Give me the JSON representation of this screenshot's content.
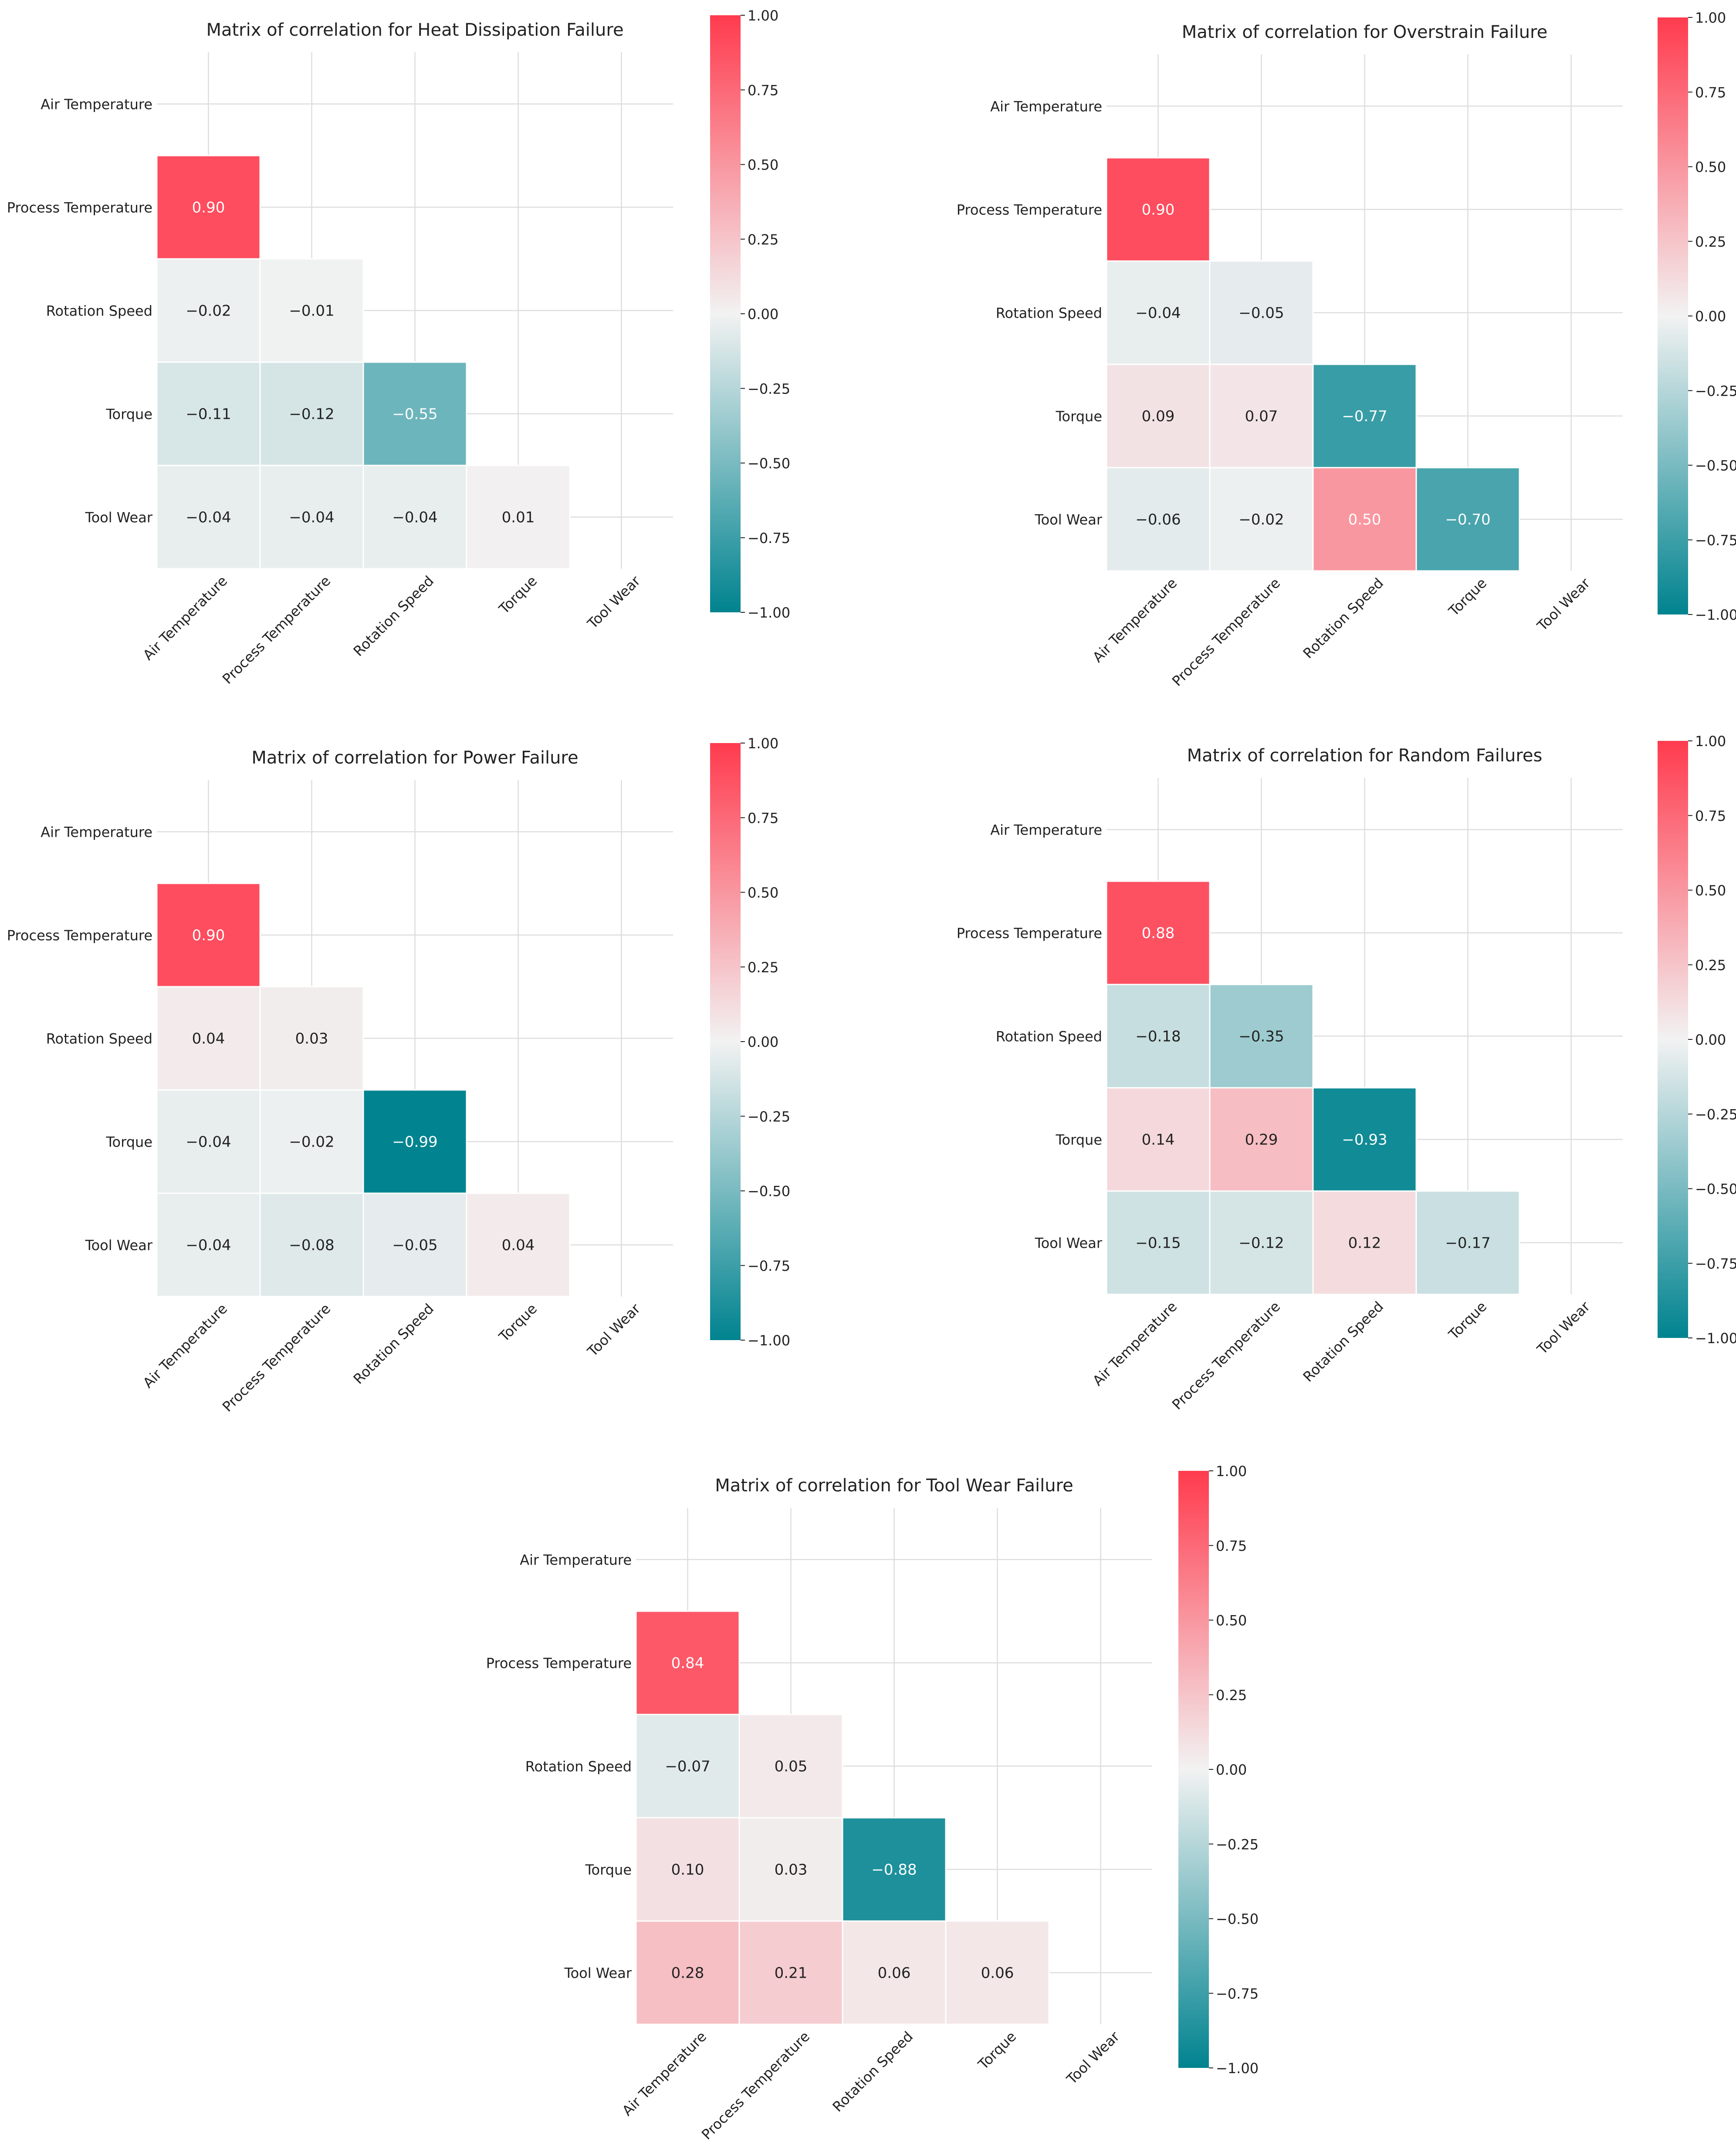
{
  "chart_data": [
    {
      "type": "heatmap",
      "title": "Matrix of correlation for Heat Dissipation Failure",
      "labels": [
        "Air Temperature",
        "Process Temperature",
        "Rotation Speed",
        "Torque",
        "Tool Wear"
      ],
      "values": [
        [
          null,
          null,
          null,
          null,
          null
        ],
        [
          0.9,
          null,
          null,
          null,
          null
        ],
        [
          -0.02,
          -0.01,
          null,
          null,
          null
        ],
        [
          -0.11,
          -0.12,
          -0.55,
          null,
          null
        ],
        [
          -0.04,
          -0.04,
          -0.04,
          0.01,
          null
        ]
      ],
      "colorbar": {
        "min": -1.0,
        "max": 1.0,
        "ticks": [
          "1.00",
          "0.75",
          "0.50",
          "0.25",
          "0.00",
          "−0.25",
          "−0.50",
          "−0.75",
          "−1.00"
        ]
      }
    },
    {
      "type": "heatmap",
      "title": "Matrix of correlation for Overstrain Failure",
      "labels": [
        "Air Temperature",
        "Process Temperature",
        "Rotation Speed",
        "Torque",
        "Tool Wear"
      ],
      "values": [
        [
          null,
          null,
          null,
          null,
          null
        ],
        [
          0.9,
          null,
          null,
          null,
          null
        ],
        [
          -0.04,
          -0.05,
          null,
          null,
          null
        ],
        [
          0.09,
          0.07,
          -0.77,
          null,
          null
        ],
        [
          -0.06,
          -0.02,
          0.5,
          -0.7,
          null
        ]
      ],
      "colorbar": {
        "min": -1.0,
        "max": 1.0,
        "ticks": [
          "1.00",
          "0.75",
          "0.50",
          "0.25",
          "0.00",
          "−0.25",
          "−0.50",
          "−0.75",
          "−1.00"
        ]
      }
    },
    {
      "type": "heatmap",
      "title": "Matrix of correlation for Power Failure",
      "labels": [
        "Air Temperature",
        "Process Temperature",
        "Rotation Speed",
        "Torque",
        "Tool Wear"
      ],
      "values": [
        [
          null,
          null,
          null,
          null,
          null
        ],
        [
          0.9,
          null,
          null,
          null,
          null
        ],
        [
          0.04,
          0.03,
          null,
          null,
          null
        ],
        [
          -0.04,
          -0.02,
          -0.99,
          null,
          null
        ],
        [
          -0.04,
          -0.08,
          -0.05,
          0.04,
          null
        ]
      ],
      "colorbar": {
        "min": -1.0,
        "max": 1.0,
        "ticks": [
          "1.00",
          "0.75",
          "0.50",
          "0.25",
          "0.00",
          "−0.25",
          "−0.50",
          "−0.75",
          "−1.00"
        ]
      }
    },
    {
      "type": "heatmap",
      "title": "Matrix of correlation for Random Failures",
      "labels": [
        "Air Temperature",
        "Process Temperature",
        "Rotation Speed",
        "Torque",
        "Tool Wear"
      ],
      "values": [
        [
          null,
          null,
          null,
          null,
          null
        ],
        [
          0.88,
          null,
          null,
          null,
          null
        ],
        [
          -0.18,
          -0.35,
          null,
          null,
          null
        ],
        [
          0.14,
          0.29,
          -0.93,
          null,
          null
        ],
        [
          -0.15,
          -0.12,
          0.12,
          -0.17,
          null
        ]
      ],
      "colorbar": {
        "min": -1.0,
        "max": 1.0,
        "ticks": [
          "1.00",
          "0.75",
          "0.50",
          "0.25",
          "0.00",
          "−0.25",
          "−0.50",
          "−0.75",
          "−1.00"
        ]
      }
    },
    {
      "type": "heatmap",
      "title": "Matrix of correlation for Tool Wear Failure",
      "labels": [
        "Air Temperature",
        "Process Temperature",
        "Rotation Speed",
        "Torque",
        "Tool Wear"
      ],
      "values": [
        [
          null,
          null,
          null,
          null,
          null
        ],
        [
          0.84,
          null,
          null,
          null,
          null
        ],
        [
          -0.07,
          0.05,
          null,
          null,
          null
        ],
        [
          0.1,
          0.03,
          -0.88,
          null,
          null
        ],
        [
          0.28,
          0.21,
          0.06,
          0.06,
          null
        ]
      ],
      "colorbar": {
        "min": -1.0,
        "max": 1.0,
        "ticks": [
          "1.00",
          "0.75",
          "0.50",
          "0.25",
          "0.00",
          "−0.25",
          "−0.50",
          "−0.75",
          "−1.00"
        ]
      }
    }
  ],
  "colors": {
    "negative": "#00838f",
    "zero": "#f2f2f2",
    "positive": "#ff3b4e",
    "grid": "#dddddd",
    "text": "#222222"
  }
}
